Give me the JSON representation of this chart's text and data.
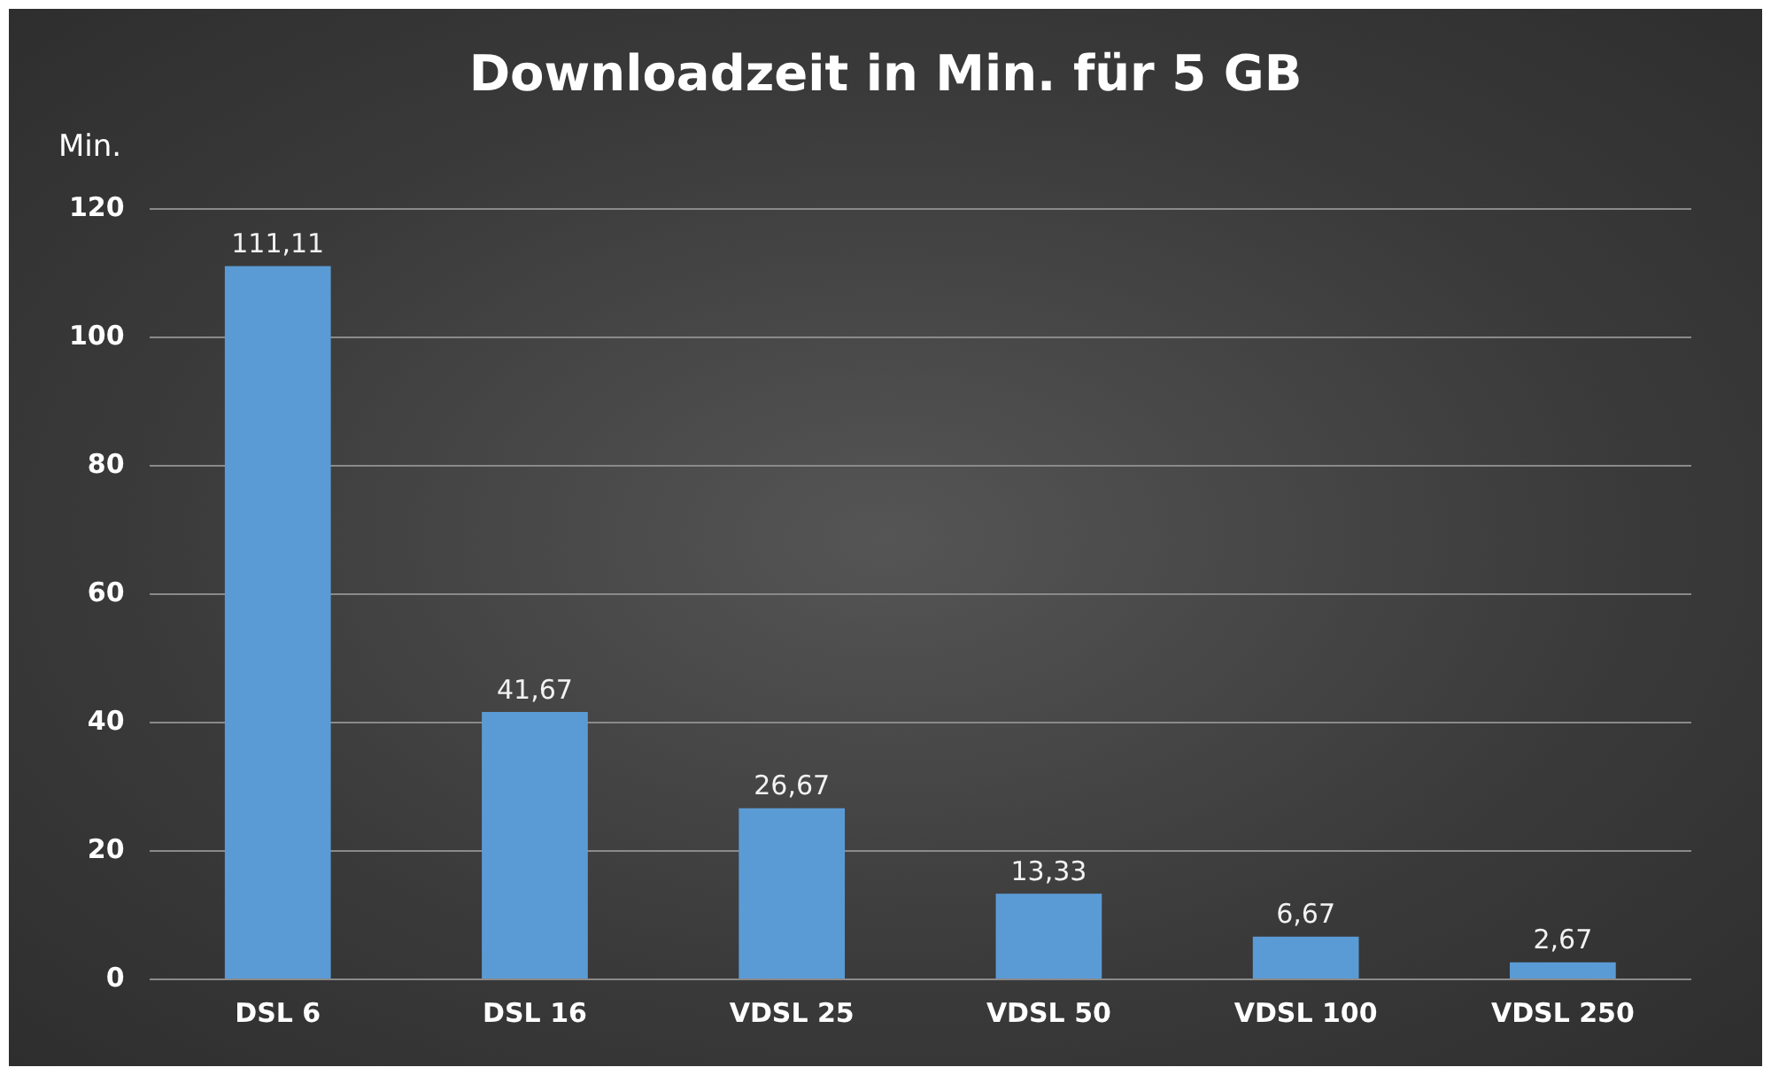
{
  "chart_data": {
    "type": "bar",
    "title": "Downloadzeit in Min. für 5 GB",
    "ylabel": "Min.",
    "categories": [
      "DSL 6",
      "DSL 16",
      "VDSL 25",
      "VDSL 50",
      "VDSL 100",
      "VDSL 250"
    ],
    "values": [
      111.11,
      41.67,
      26.67,
      13.33,
      6.67,
      2.67
    ],
    "value_labels": [
      "111,11",
      "41,67",
      "26,67",
      "13,33",
      "6,67",
      "2,67"
    ],
    "color": "#5b9bd5",
    "ylim": [
      0,
      120
    ],
    "yticks": [
      0,
      20,
      40,
      60,
      80,
      100,
      120
    ],
    "grid": "y",
    "legend": false
  }
}
